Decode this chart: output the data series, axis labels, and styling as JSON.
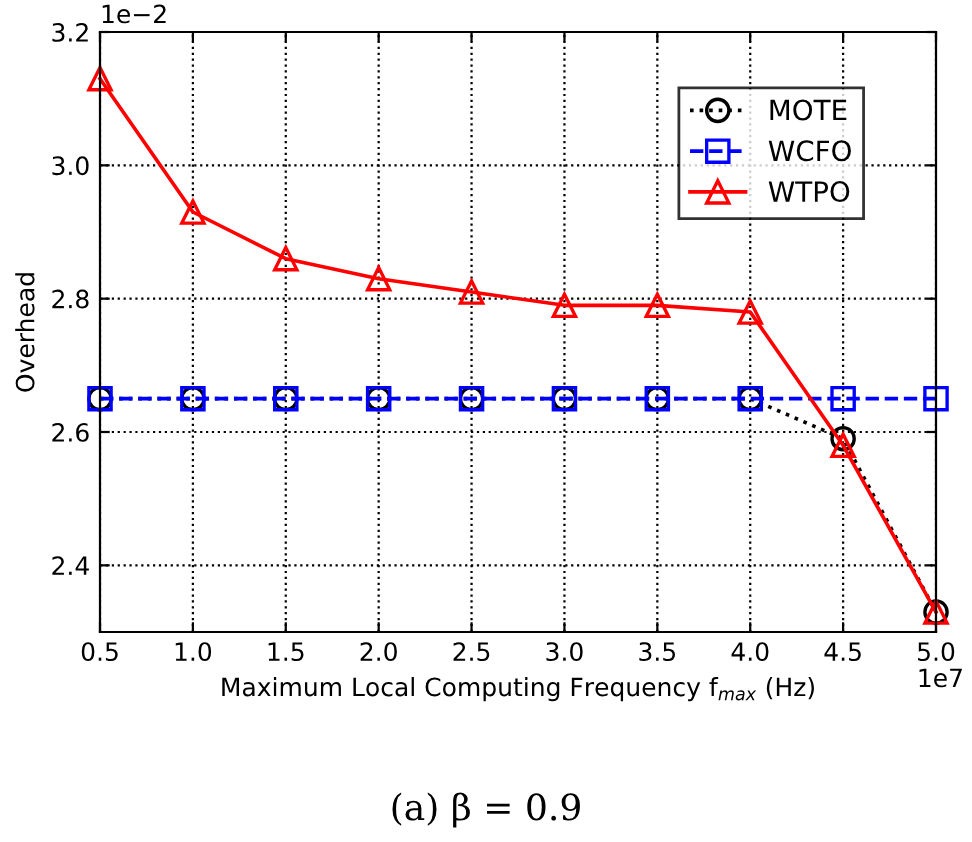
{
  "chart_data": {
    "type": "line",
    "xlabel": "Maximum Local Computing Frequency f$_{max}$ (Hz)",
    "ylabel": "Overhead",
    "x": [
      0.5,
      1.0,
      1.5,
      2.0,
      2.5,
      3.0,
      3.5,
      4.0,
      4.5,
      5.0
    ],
    "series": [
      {
        "name": "MOTE",
        "color": "#000000",
        "marker": "circle",
        "line_style": "dotted",
        "values": [
          2.65,
          2.65,
          2.65,
          2.65,
          2.65,
          2.65,
          2.65,
          2.65,
          2.59,
          2.33
        ]
      },
      {
        "name": "WCFO",
        "color": "#0000ff",
        "marker": "square",
        "line_style": "dashed",
        "values": [
          2.65,
          2.65,
          2.65,
          2.65,
          2.65,
          2.65,
          2.65,
          2.65,
          2.65,
          2.65
        ]
      },
      {
        "name": "WTPO",
        "color": "#ff0000",
        "marker": "triangle",
        "line_style": "solid",
        "values": [
          3.13,
          2.93,
          2.86,
          2.83,
          2.81,
          2.79,
          2.79,
          2.78,
          2.58,
          2.33
        ]
      }
    ],
    "xlim": [
      0.5,
      5.0
    ],
    "xticks": [
      0.5,
      {
        "value": 1,
        "label": "1.0"
      },
      1.5,
      {
        "value": 2,
        "label": "2.0"
      },
      2.5,
      {
        "value": 3,
        "label": "3.0"
      },
      3.5,
      {
        "value": 4,
        "label": "4.0"
      },
      4.5,
      {
        "value": 5,
        "label": "5.0"
      }
    ],
    "ylim": [
      2.3,
      3.2
    ],
    "yticks": [
      2.4,
      2.6,
      2.8,
      {
        "value": 3,
        "label": "3.0"
      },
      3.2
    ],
    "grid": true,
    "legend": "top right",
    "annotations": [
      "1e−2",
      "1e7",
      "(a) β = 0.9"
    ]
  }
}
